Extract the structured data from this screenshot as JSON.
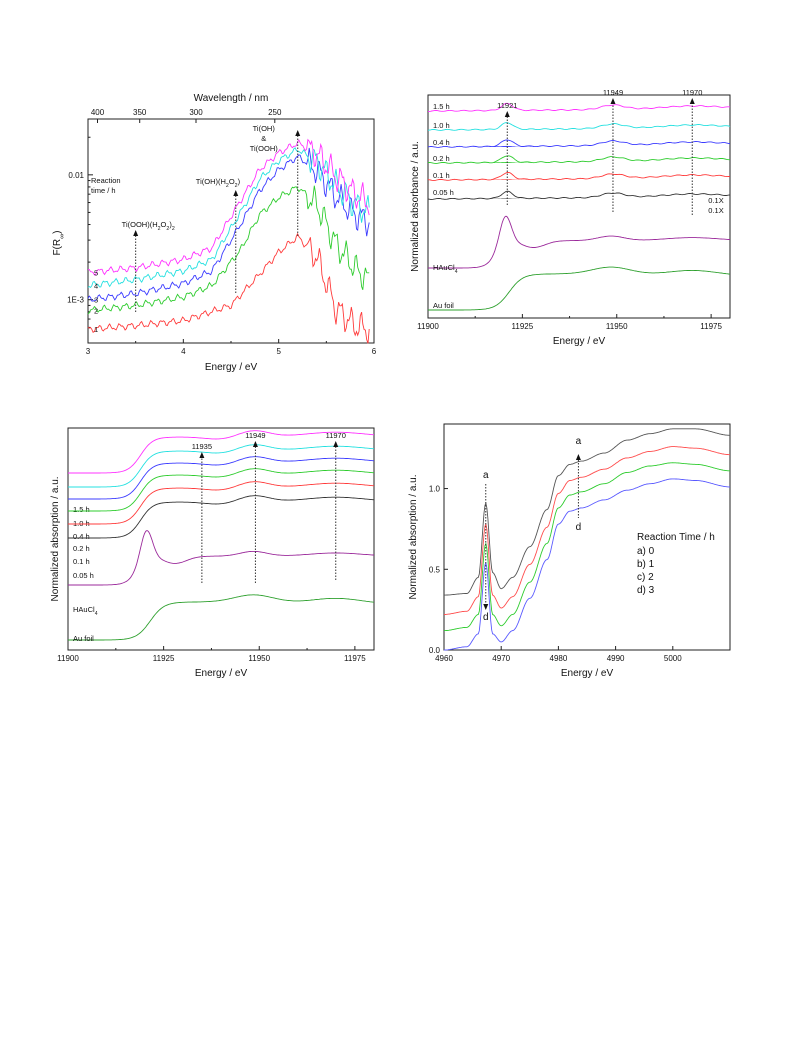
{
  "chart_data": [
    {
      "type": "line",
      "panel": "top-left",
      "xlabel": "Energy / eV",
      "ylabel": "F(R",
      "ylabel_sub": "∞",
      "top_xlabel": "Wavelength / nm",
      "xlim": [
        3,
        6
      ],
      "x_ticks": [
        "3",
        "4",
        "5",
        "6"
      ],
      "top_ticks": [
        "400",
        "350",
        "300",
        "250"
      ],
      "yscale": "log",
      "y_ticks": [
        "0.01",
        "1E-3"
      ],
      "legend_title": "Reaction\ntime / h",
      "series": [
        {
          "name": "1",
          "color": "#ff3b3b",
          "x": [
            3.0,
            3.5,
            4.0,
            4.5,
            4.8,
            5.0,
            5.2,
            5.4,
            5.6,
            5.8,
            5.95
          ],
          "y": [
            0.00058,
            0.00062,
            0.00068,
            0.0009,
            0.0016,
            0.0024,
            0.0032,
            0.0022,
            0.00085,
            0.00062,
            0.00058
          ]
        },
        {
          "name": "2",
          "color": "#2ecc2e",
          "x": [
            3.0,
            3.5,
            4.0,
            4.3,
            4.6,
            4.8,
            5.0,
            5.2,
            5.4,
            5.6,
            5.8,
            5.95
          ],
          "y": [
            0.00082,
            0.0009,
            0.00105,
            0.0013,
            0.0025,
            0.0048,
            0.0066,
            0.008,
            0.0058,
            0.0028,
            0.0018,
            0.0014
          ]
        },
        {
          "name": "3",
          "color": "#3b3bff",
          "x": [
            3.0,
            3.5,
            4.0,
            4.3,
            4.6,
            4.8,
            5.0,
            5.2,
            5.4,
            5.6,
            5.8,
            5.95
          ],
          "y": [
            0.001,
            0.00112,
            0.00135,
            0.0017,
            0.004,
            0.0075,
            0.011,
            0.014,
            0.011,
            0.0068,
            0.0048,
            0.0042
          ]
        },
        {
          "name": "4",
          "color": "#24e0e0",
          "x": [
            3.0,
            3.5,
            4.0,
            4.3,
            4.6,
            4.8,
            5.0,
            5.2,
            5.4,
            5.6,
            5.8,
            5.95
          ],
          "y": [
            0.0013,
            0.00145,
            0.0017,
            0.0021,
            0.005,
            0.0092,
            0.013,
            0.016,
            0.0128,
            0.0082,
            0.0058,
            0.005
          ]
        },
        {
          "name": "5",
          "color": "#ff33ff",
          "x": [
            3.0,
            3.5,
            4.0,
            4.3,
            4.6,
            4.8,
            5.0,
            5.2,
            5.4,
            5.6,
            5.8,
            5.95
          ],
          "y": [
            0.00165,
            0.0018,
            0.0021,
            0.0026,
            0.0062,
            0.011,
            0.015,
            0.018,
            0.0148,
            0.0098,
            0.007,
            0.006
          ]
        }
      ],
      "annotations": [
        {
          "x": 3.5,
          "text": "Ti(OOH)(H",
          "sub": "2",
          "tail": "O",
          "sub2": "2",
          "end": ")",
          "cap": "2"
        },
        {
          "x": 4.55,
          "text": "Ti(OH)(H",
          "sub": "2",
          "tail": "O",
          "sub2": "2",
          "end": ")"
        },
        {
          "x": 5.2,
          "lines": [
            "Ti(OH)",
            "&",
            "Ti(OOH)"
          ]
        }
      ]
    },
    {
      "type": "line",
      "panel": "top-right",
      "xlabel": "Energy / eV",
      "ylabel": "Normalized absorbance / a.u.",
      "xlim": [
        11900,
        11980
      ],
      "x_ticks": [
        "11900",
        "11925",
        "11950",
        "11975"
      ],
      "markers": [
        "11921",
        "11949",
        "11970"
      ],
      "scale_labels": [
        "0.1X",
        "0.1X"
      ],
      "series": [
        {
          "name": "1.5 h",
          "color": "#ff33ff"
        },
        {
          "name": "1.0 h",
          "color": "#24e0e0"
        },
        {
          "name": "0.4 h",
          "color": "#3b3bff"
        },
        {
          "name": "0.2 h",
          "color": "#2ecc2e"
        },
        {
          "name": "0.1 h",
          "color": "#ff3b3b"
        },
        {
          "name": "0.05 h",
          "color": "#333333"
        },
        {
          "name": "HAuCl",
          "sub": "4",
          "color": "#9b2a9b"
        },
        {
          "name": "Au foil",
          "color": "#2ea02e"
        }
      ]
    },
    {
      "type": "line",
      "panel": "bottom-left",
      "xlabel": "Energy / eV",
      "ylabel": "Normalized absorption / a.u.",
      "xlim": [
        11900,
        11980
      ],
      "x_ticks": [
        "11900",
        "11925",
        "11950",
        "11975"
      ],
      "markers": [
        "11935",
        "11949",
        "11970"
      ],
      "series": [
        {
          "name": "1.5 h",
          "color": "#ff33ff"
        },
        {
          "name": "1.0 h",
          "color": "#24e0e0"
        },
        {
          "name": "0.4 h",
          "color": "#3b3bff"
        },
        {
          "name": "0.2 h",
          "color": "#2ecc2e"
        },
        {
          "name": "0.1 h",
          "color": "#ff3b3b"
        },
        {
          "name": "0.05 h",
          "color": "#333333"
        },
        {
          "name": "HAuCl",
          "sub": "4",
          "color": "#9b2a9b"
        },
        {
          "name": "Au foil",
          "color": "#2ea02e"
        }
      ]
    },
    {
      "type": "line",
      "panel": "bottom-right",
      "xlabel": "Energy / eV",
      "ylabel": "Normalized absorption / a.u.",
      "xlim": [
        4960,
        5010
      ],
      "ylim": [
        0.0,
        1.4
      ],
      "x_ticks": [
        "4960",
        "4970",
        "4980",
        "4990",
        "5000"
      ],
      "y_ticks": [
        "0.0",
        "0.5",
        "1.0"
      ],
      "legend_title": "Reaction Time / h",
      "legend_items": [
        "a) 0",
        "b) 1",
        "c) 2",
        "d) 3"
      ],
      "arrow_labels": [
        "a",
        "d",
        "a",
        "d"
      ],
      "series": [
        {
          "name": "a) 0",
          "color": "#555555",
          "x": [
            4960,
            4964,
            4966,
            4967.3,
            4968.5,
            4970,
            4972,
            4975,
            4978,
            4980,
            4982,
            4984,
            4988,
            4992,
            4996,
            5000,
            5004,
            5010
          ],
          "y": [
            0.34,
            0.35,
            0.45,
            0.91,
            0.48,
            0.38,
            0.45,
            0.64,
            0.87,
            1.08,
            1.15,
            1.17,
            1.22,
            1.3,
            1.34,
            1.37,
            1.37,
            1.33
          ]
        },
        {
          "name": "b) 1",
          "color": "#ff4d4d",
          "x": [
            4960,
            4964,
            4966,
            4967.3,
            4968.5,
            4970,
            4972,
            4975,
            4978,
            4980,
            4982,
            4984,
            4988,
            4992,
            4996,
            5000,
            5004,
            5010
          ],
          "y": [
            0.22,
            0.24,
            0.33,
            0.78,
            0.34,
            0.26,
            0.33,
            0.53,
            0.76,
            0.97,
            1.05,
            1.07,
            1.12,
            1.19,
            1.23,
            1.26,
            1.25,
            1.21
          ]
        },
        {
          "name": "c) 2",
          "color": "#2ecc2e",
          "x": [
            4960,
            4964,
            4966,
            4967.3,
            4968.5,
            4970,
            4972,
            4975,
            4978,
            4980,
            4982,
            4984,
            4988,
            4992,
            4996,
            5000,
            5004,
            5010
          ],
          "y": [
            0.12,
            0.14,
            0.22,
            0.66,
            0.22,
            0.15,
            0.22,
            0.42,
            0.66,
            0.88,
            0.96,
            0.98,
            1.03,
            1.1,
            1.14,
            1.16,
            1.15,
            1.11
          ]
        },
        {
          "name": "d) 3",
          "color": "#5a5aff",
          "x": [
            4960,
            4964,
            4966,
            4967.3,
            4968.5,
            4970,
            4972,
            4975,
            4978,
            4980,
            4982,
            4984,
            4988,
            4992,
            4996,
            5000,
            5004,
            5010
          ],
          "y": [
            0.0,
            0.02,
            0.1,
            0.54,
            0.1,
            0.05,
            0.12,
            0.32,
            0.56,
            0.78,
            0.86,
            0.88,
            0.93,
            0.99,
            1.03,
            1.06,
            1.05,
            1.01
          ]
        }
      ]
    }
  ]
}
